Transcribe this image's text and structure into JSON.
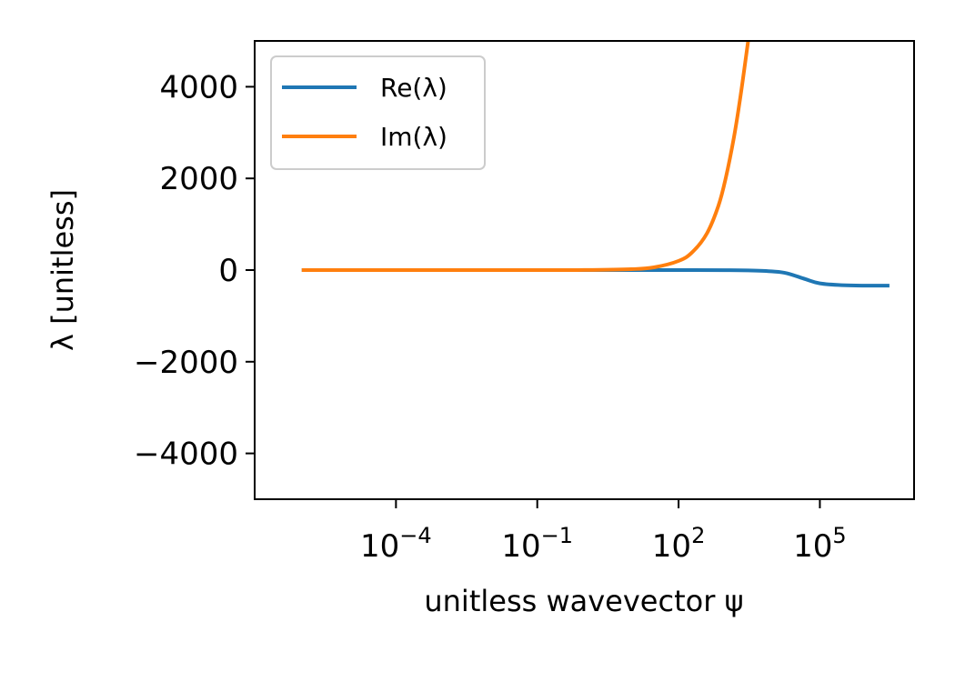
{
  "chart_data": {
    "type": "line",
    "title": "",
    "xlabel": "unitless wavevector ψ",
    "ylabel": "λ [unitless]",
    "x_scale": "log",
    "xlim": [
      1e-07,
      10000000.0
    ],
    "ylim": [
      -5000,
      5000
    ],
    "grid": false,
    "legend_placement": "top-left",
    "x_ticks": [
      {
        "value": 0.0001,
        "base": "10",
        "exp": "−4"
      },
      {
        "value": 0.1,
        "base": "10",
        "exp": "−1"
      },
      {
        "value": 100,
        "base": "10",
        "exp": "2"
      },
      {
        "value": 100000,
        "base": "10",
        "exp": "5"
      }
    ],
    "y_ticks": [
      {
        "value": 4000,
        "label": "4000"
      },
      {
        "value": 2000,
        "label": "2000"
      },
      {
        "value": 0,
        "label": "0"
      },
      {
        "value": -2000,
        "label": "−2000"
      },
      {
        "value": -4000,
        "label": "−4000"
      }
    ],
    "series": [
      {
        "name": "Re(λ)",
        "color": "#1f77b4",
        "x": [
          1e-06,
          0.0001,
          0.1,
          10,
          100,
          1000,
          3000,
          10000,
          20000,
          50000,
          100000,
          300000,
          1000000,
          3000000
        ],
        "y": [
          0,
          0,
          0,
          0,
          0,
          -2,
          -8,
          -30,
          -70,
          -200,
          -290,
          -330,
          -340,
          -340
        ]
      },
      {
        "name": "Im(λ)",
        "color": "#ff7f0e",
        "x": [
          1e-06,
          0.0001,
          0.1,
          1,
          10,
          30,
          100,
          200,
          400,
          700,
          1000,
          1500,
          2000,
          2500,
          3000,
          3300
        ],
        "y": [
          0,
          0,
          0,
          2,
          20,
          60,
          200,
          400,
          800,
          1400,
          2000,
          2900,
          3700,
          4400,
          5000,
          5300
        ]
      }
    ]
  }
}
